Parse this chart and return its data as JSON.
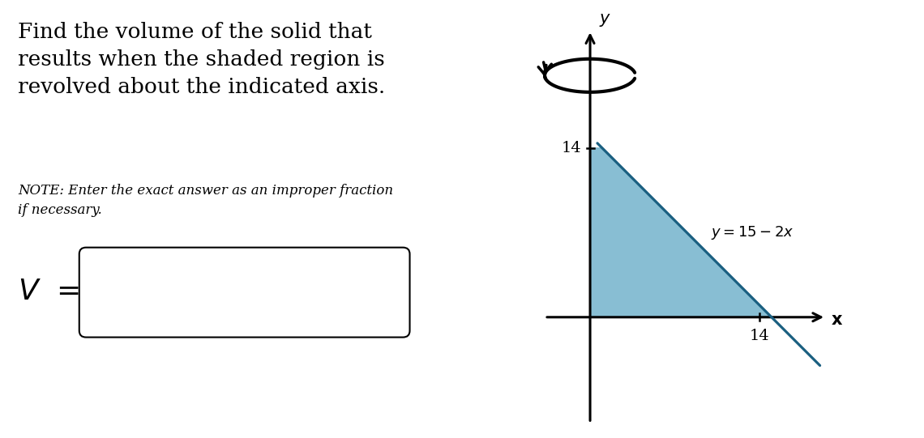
{
  "background_color": "#ffffff",
  "text_title_lines": [
    "Find the volume of the solid that",
    "results when the shaded region is",
    "revolved about the indicated axis."
  ],
  "text_note": "NOTE: Enter the exact answer as an improper fraction\nif necessary.",
  "label_V": "$V$ =",
  "shaded_color": "#6aaec8",
  "shaded_alpha": 0.8,
  "line_color": "#1a5f80",
  "axis_color": "#000000",
  "curve_label": "$y = 15 - 2x$",
  "tick_label_14_x": "14",
  "tick_label_14_y": "14",
  "x_label": "$\\mathbf{x}$",
  "y_label": "$y$",
  "graph_xlim": [
    -2.0,
    8.5
  ],
  "graph_ylim": [
    -4.0,
    10.5
  ],
  "x_tick_pos": 5.6,
  "y_tick_pos": 5.6
}
